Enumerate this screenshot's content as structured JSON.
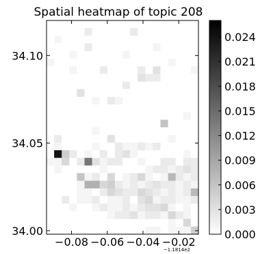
{
  "chart_data": {
    "type": "heatmap",
    "title": "Spatial heatmap of topic 208",
    "colormap": "greys",
    "x_offset_label": "−1.1814e2",
    "xlim": [
      -0.094,
      -0.009
    ],
    "ylim": [
      33.998,
      34.12
    ],
    "x_ticks": [
      -0.08,
      -0.06,
      -0.04,
      -0.02
    ],
    "x_tick_labels": [
      "−0.08",
      "−0.06",
      "−0.04",
      "−0.02"
    ],
    "y_ticks": [
      34.0,
      34.05,
      34.1
    ],
    "y_tick_labels": [
      "34.00",
      "34.05",
      "34.10"
    ],
    "colorbar": {
      "min": 0.0,
      "max": 0.026,
      "ticks": [
        0.0,
        0.003,
        0.006,
        0.009,
        0.012,
        0.015,
        0.018,
        0.021,
        0.024
      ],
      "tick_labels": [
        "0.000",
        "0.003",
        "0.006",
        "0.009",
        "0.012",
        "0.015",
        "0.018",
        "0.021",
        "0.024"
      ]
    },
    "n_cols": 20,
    "n_rows": 28,
    "values": [
      [
        0,
        0,
        0,
        0,
        0,
        0,
        0,
        0,
        0,
        0,
        0,
        0,
        0,
        0,
        0,
        0,
        0,
        0,
        0,
        0
      ],
      [
        0,
        0,
        0,
        0,
        0,
        0.002,
        0,
        0,
        0,
        0,
        0,
        0.002,
        0,
        0,
        0,
        0,
        0,
        0,
        0,
        0
      ],
      [
        0,
        0.001,
        0,
        0,
        0,
        0,
        0,
        0,
        0,
        0,
        0,
        0,
        0,
        0,
        0,
        0,
        0,
        0,
        0,
        0
      ],
      [
        0,
        0,
        0,
        0,
        0,
        0.002,
        0,
        0,
        0,
        0,
        0,
        0,
        0,
        0,
        0.001,
        0,
        0,
        0,
        0,
        0
      ],
      [
        0,
        0,
        0,
        0.001,
        0,
        0,
        0,
        0,
        0,
        0,
        0.001,
        0,
        0,
        0,
        0,
        0,
        0,
        0,
        0,
        0
      ],
      [
        0.001,
        0,
        0,
        0,
        0,
        0,
        0,
        0,
        0,
        0,
        0,
        0,
        0,
        0,
        0,
        0,
        0.001,
        0,
        0,
        0
      ],
      [
        0,
        0,
        0,
        0.001,
        0,
        0,
        0,
        0.002,
        0,
        0,
        0,
        0,
        0.002,
        0,
        0.003,
        0,
        0,
        0,
        0,
        0.001
      ],
      [
        0,
        0,
        0,
        0,
        0,
        0,
        0,
        0,
        0,
        0,
        0,
        0,
        0.003,
        0.002,
        0.002,
        0,
        0,
        0,
        0,
        0
      ],
      [
        0,
        0,
        0,
        0,
        0,
        0,
        0,
        0,
        0,
        0,
        0.002,
        0,
        0,
        0,
        0,
        0,
        0,
        0,
        0,
        0
      ],
      [
        0,
        0,
        0,
        0,
        0.003,
        0,
        0,
        0,
        0,
        0,
        0,
        0,
        0,
        0,
        0,
        0,
        0,
        0,
        0,
        0
      ],
      [
        0,
        0,
        0,
        0,
        0,
        0,
        0.001,
        0,
        0.002,
        0.001,
        0,
        0,
        0,
        0,
        0,
        0,
        0,
        0,
        0,
        0
      ],
      [
        0,
        0,
        0,
        0,
        0,
        0,
        0,
        0,
        0,
        0,
        0,
        0,
        0,
        0,
        0,
        0,
        0,
        0,
        0,
        0
      ],
      [
        0,
        0,
        0,
        0,
        0,
        0,
        0,
        0,
        0,
        0,
        0,
        0,
        0,
        0,
        0,
        0,
        0,
        0,
        0.001,
        0
      ],
      [
        0,
        0,
        0,
        0,
        0,
        0,
        0,
        0,
        0,
        0,
        0,
        0,
        0,
        0,
        0,
        0.006,
        0,
        0,
        0,
        0
      ],
      [
        0,
        0,
        0,
        0,
        0,
        0,
        0.001,
        0,
        0,
        0,
        0,
        0,
        0,
        0,
        0,
        0,
        0,
        0,
        0,
        0
      ],
      [
        0,
        0.002,
        0,
        0,
        0,
        0,
        0,
        0,
        0.003,
        0,
        0,
        0,
        0,
        0,
        0,
        0,
        0.001,
        0,
        0,
        0
      ],
      [
        0,
        0.001,
        0,
        0,
        0,
        0,
        0.001,
        0,
        0,
        0.002,
        0.001,
        0.001,
        0.002,
        0.001,
        0.002,
        0,
        0,
        0,
        0,
        0
      ],
      [
        0,
        0.024,
        0.005,
        0.002,
        0,
        0.001,
        0,
        0.002,
        0,
        0.002,
        0.003,
        0.001,
        0,
        0,
        0,
        0,
        0,
        0,
        0.001,
        0
      ],
      [
        0.001,
        0.001,
        0.004,
        0,
        0.002,
        0.014,
        0.003,
        0.001,
        0.002,
        0.002,
        0,
        0,
        0.001,
        0,
        0,
        0.002,
        0.002,
        0,
        0.002,
        0.002
      ],
      [
        0,
        0.001,
        0,
        0,
        0,
        0,
        0,
        0.001,
        0,
        0,
        0,
        0,
        0,
        0.001,
        0.002,
        0.002,
        0.001,
        0.002,
        0.003,
        0.002
      ],
      [
        0,
        0,
        0,
        0,
        0.006,
        0.001,
        0.002,
        0,
        0.004,
        0,
        0.001,
        0.002,
        0.004,
        0.001,
        0,
        0.001,
        0.007,
        0.002,
        0.001,
        0.002
      ],
      [
        0,
        0,
        0,
        0,
        0.001,
        0.008,
        0.008,
        0.004,
        0.005,
        0.002,
        0.001,
        0.002,
        0.001,
        0.002,
        0.003,
        0.002,
        0.002,
        0.001,
        0.002,
        0.001
      ],
      [
        0,
        0,
        0,
        0,
        0.001,
        0.001,
        0,
        0.002,
        0.004,
        0.003,
        0.002,
        0.002,
        0.004,
        0.003,
        0.002,
        0.001,
        0.002,
        0.001,
        0.002,
        0.007
      ],
      [
        0,
        0,
        0.002,
        0,
        0.001,
        0.001,
        0.002,
        0,
        0.001,
        0.001,
        0.002,
        0,
        0.003,
        0.004,
        0.001,
        0.002,
        0.002,
        0.001,
        0.001,
        0.002
      ],
      [
        0,
        0,
        0,
        0.001,
        0,
        0,
        0.001,
        0.002,
        0.001,
        0.001,
        0.002,
        0.001,
        0.002,
        0.003,
        0.003,
        0.004,
        0.001,
        0,
        0.001,
        0
      ],
      [
        0,
        0,
        0,
        0,
        0,
        0,
        0,
        0,
        0.001,
        0.002,
        0.002,
        0.003,
        0.001,
        0.002,
        0.002,
        0.001,
        0.004,
        0.002,
        0.001,
        0
      ],
      [
        0,
        0,
        0,
        0,
        0,
        0,
        0,
        0,
        0,
        0,
        0,
        0,
        0,
        0,
        0,
        0,
        0.001,
        0,
        0.004,
        0
      ],
      [
        0,
        0,
        0,
        0,
        0,
        0,
        0,
        0,
        0,
        0,
        0,
        0,
        0,
        0.001,
        0.001,
        0,
        0.001,
        0.001,
        0.001,
        0.005
      ]
    ]
  }
}
